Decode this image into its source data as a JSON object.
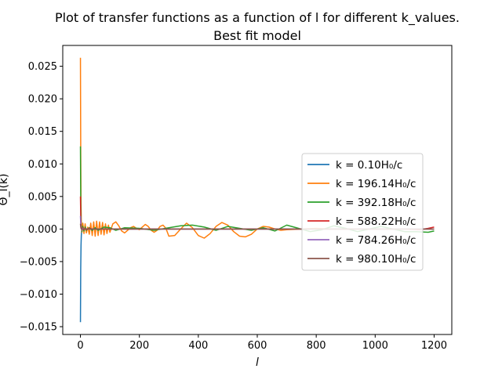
{
  "chart_data": {
    "type": "line",
    "title": "Plot of transfer functions as a function of l for different k_values.",
    "subtitle": "Best fit model",
    "xlabel": "l",
    "ylabel": "Θ_l(k)",
    "xlim": [
      -60,
      1260
    ],
    "ylim": [
      -0.0162,
      0.0282
    ],
    "xticks": [
      0,
      200,
      400,
      600,
      800,
      1000,
      1200
    ],
    "xtick_labels": [
      "0",
      "200",
      "400",
      "600",
      "800",
      "1000",
      "1200"
    ],
    "yticks": [
      -0.015,
      -0.01,
      -0.005,
      0.0,
      0.005,
      0.01,
      0.015,
      0.02,
      0.025
    ],
    "ytick_labels": [
      "−0.015",
      "−0.010",
      "−0.005",
      "0.000",
      "0.005",
      "0.010",
      "0.015",
      "0.020",
      "0.025"
    ],
    "grid": false,
    "legend_position": "center-right",
    "series": [
      {
        "name": "k = 0.10H₀/c",
        "color": "#1f77b4",
        "x": [
          0,
          1,
          2,
          3,
          4,
          5,
          6,
          8,
          10,
          15,
          20,
          40,
          100,
          300,
          600,
          900,
          1200
        ],
        "y": [
          -0.0143,
          -0.006,
          -0.0025,
          -0.001,
          -0.0004,
          -0.0001,
          0.0,
          0.0,
          0.0,
          0.0,
          0.0,
          0.0,
          0.0,
          0.0,
          0.0,
          0.0,
          0.0
        ]
      },
      {
        "name": "k = 196.14H₀/c",
        "color": "#ff7f0e",
        "x": [
          0,
          1,
          2,
          3,
          5,
          8,
          12,
          16,
          20,
          25,
          30,
          35,
          40,
          45,
          50,
          55,
          60,
          65,
          70,
          75,
          80,
          85,
          90,
          95,
          100,
          110,
          120,
          130,
          140,
          150,
          160,
          170,
          180,
          190,
          200,
          210,
          220,
          230,
          240,
          250,
          260,
          270,
          280,
          290,
          300,
          320,
          340,
          360,
          380,
          400,
          420,
          440,
          460,
          480,
          500,
          520,
          540,
          560,
          580,
          600,
          620,
          640,
          660,
          680,
          700,
          750,
          800,
          850,
          900,
          950,
          1000,
          1050,
          1100,
          1150,
          1200
        ],
        "y": [
          0.0263,
          0.012,
          0.004,
          0.001,
          -0.0005,
          0.0009,
          -0.0007,
          0.0008,
          -0.0006,
          0.0003,
          -0.0008,
          0.0009,
          -0.001,
          0.0011,
          -0.0011,
          0.0012,
          -0.001,
          0.0011,
          -0.0008,
          0.001,
          -0.0009,
          0.0008,
          -0.0007,
          0.0006,
          -0.0005,
          0.0008,
          0.0011,
          0.0005,
          -0.0003,
          -0.0006,
          -0.0002,
          0.0002,
          0.0004,
          0.0001,
          -0.0001,
          0.0003,
          0.0007,
          0.0004,
          -0.0002,
          -0.0005,
          -0.0002,
          0.0004,
          0.0006,
          0.0001,
          -0.0011,
          -0.001,
          0.0,
          0.0009,
          0.0002,
          -0.001,
          -0.0014,
          -0.0007,
          0.0004,
          0.001,
          0.0006,
          -0.0004,
          -0.0011,
          -0.0012,
          -0.0008,
          0.0,
          0.0004,
          0.0003,
          0.0,
          -0.0002,
          -0.0001,
          0.0,
          0.0001,
          0.0,
          0.0,
          0.0,
          0.0,
          0.0,
          0.0,
          0.0,
          0.0
        ]
      },
      {
        "name": "k = 392.18H₀/c",
        "color": "#2ca02c",
        "x": [
          0,
          1,
          2,
          3,
          5,
          8,
          12,
          16,
          20,
          30,
          40,
          50,
          60,
          80,
          100,
          120,
          150,
          200,
          250,
          300,
          340,
          380,
          420,
          460,
          500,
          540,
          580,
          620,
          660,
          700,
          740,
          780,
          820,
          860,
          900,
          940,
          980,
          1020,
          1060,
          1100,
          1140,
          1180,
          1200
        ],
        "y": [
          0.0127,
          0.005,
          0.0015,
          0.0003,
          -0.0004,
          0.0004,
          -0.0003,
          0.0003,
          -0.0002,
          0.0002,
          -0.0002,
          0.0002,
          -0.0002,
          0.0003,
          0.0002,
          -0.0002,
          0.0002,
          0.0001,
          -0.0002,
          0.0002,
          0.0005,
          0.0006,
          0.0003,
          -0.0002,
          0.0004,
          0.0001,
          -0.0002,
          0.0002,
          -0.0003,
          0.0006,
          0.0001,
          -0.0004,
          -0.0001,
          0.0005,
          0.0001,
          -0.0004,
          0.0,
          0.0004,
          0.0,
          -0.0004,
          -0.0004,
          -0.0005,
          -0.0003
        ]
      },
      {
        "name": "k = 588.22H₀/c",
        "color": "#d62728",
        "x": [
          0,
          1,
          2,
          3,
          5,
          8,
          12,
          16,
          20,
          30,
          40,
          60,
          100,
          200,
          300,
          400,
          500,
          600,
          700,
          800,
          900,
          1000,
          1050,
          1100,
          1150,
          1180,
          1200
        ],
        "y": [
          0.005,
          0.002,
          0.0006,
          0.0001,
          -0.0002,
          0.0002,
          -0.0001,
          0.0001,
          -0.0001,
          0.0001,
          0.0,
          0.0,
          0.0,
          0.0,
          0.0,
          0.0,
          0.0,
          0.0,
          0.0,
          0.0,
          0.0,
          0.0,
          0.0,
          0.0,
          -0.0001,
          0.0001,
          0.0003
        ]
      },
      {
        "name": "k = 784.26H₀/c",
        "color": "#9467bd",
        "x": [
          0,
          1,
          2,
          3,
          5,
          8,
          12,
          20,
          40,
          100,
          300,
          600,
          900,
          1200
        ],
        "y": [
          0.002,
          0.0008,
          0.0003,
          0.0001,
          -0.0001,
          0.0001,
          0.0,
          0.0,
          0.0,
          0.0,
          0.0,
          0.0,
          0.0,
          0.0
        ]
      },
      {
        "name": "k = 980.10H₀/c",
        "color": "#8c564b",
        "x": [
          0,
          1,
          2,
          3,
          5,
          8,
          12,
          20,
          40,
          100,
          300,
          600,
          900,
          1200
        ],
        "y": [
          0.0008,
          0.0003,
          0.0001,
          0.0,
          0.0,
          0.0,
          0.0,
          0.0,
          0.0,
          0.0,
          0.0,
          0.0,
          0.0,
          0.0
        ]
      }
    ]
  }
}
